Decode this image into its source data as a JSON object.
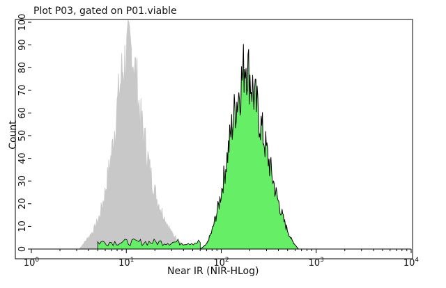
{
  "chart_data": {
    "type": "area",
    "title": "Plot P03, gated on P01.viable",
    "xlabel": "Near IR (NIR-HLog)",
    "ylabel": "Count",
    "x_scale": "log",
    "xlim": [
      1,
      10000
    ],
    "ylim": [
      0,
      100
    ],
    "x_ticks": [
      {
        "value": 1,
        "base": "10",
        "exp": "0"
      },
      {
        "value": 10,
        "base": "10",
        "exp": "1"
      },
      {
        "value": 100,
        "base": "10",
        "exp": "2"
      },
      {
        "value": 1000,
        "base": "10",
        "exp": "3"
      },
      {
        "value": 10000,
        "base": "10",
        "exp": "4"
      }
    ],
    "y_ticks": [
      0,
      10,
      20,
      30,
      40,
      50,
      60,
      70,
      80,
      90,
      100
    ],
    "series": [
      {
        "color": "#c8c8c8",
        "outline": "#c8c8c8",
        "x": [
          3.2,
          3.8,
          4.5,
          5.2,
          6.0,
          7.0,
          8.0,
          9.0,
          10.0,
          11.0,
          12.0,
          13.0,
          14.0,
          16.0,
          18.0,
          21.0,
          25.0,
          30.0,
          37.0,
          45.0
        ],
        "y": [
          0,
          4,
          8,
          14,
          25,
          42,
          62,
          78,
          85,
          88,
          84,
          72,
          58,
          46,
          33,
          22,
          14,
          7,
          3,
          0
        ]
      },
      {
        "color": "#66ee66",
        "outline": "#000000",
        "x": [
          60,
          70,
          80,
          95,
          110,
          125,
          140,
          160,
          180,
          200,
          230,
          270,
          320,
          380,
          460,
          550,
          650
        ],
        "y": [
          0,
          2,
          8,
          20,
          35,
          50,
          62,
          72,
          84,
          76,
          65,
          52,
          38,
          24,
          12,
          4,
          0
        ]
      }
    ]
  }
}
